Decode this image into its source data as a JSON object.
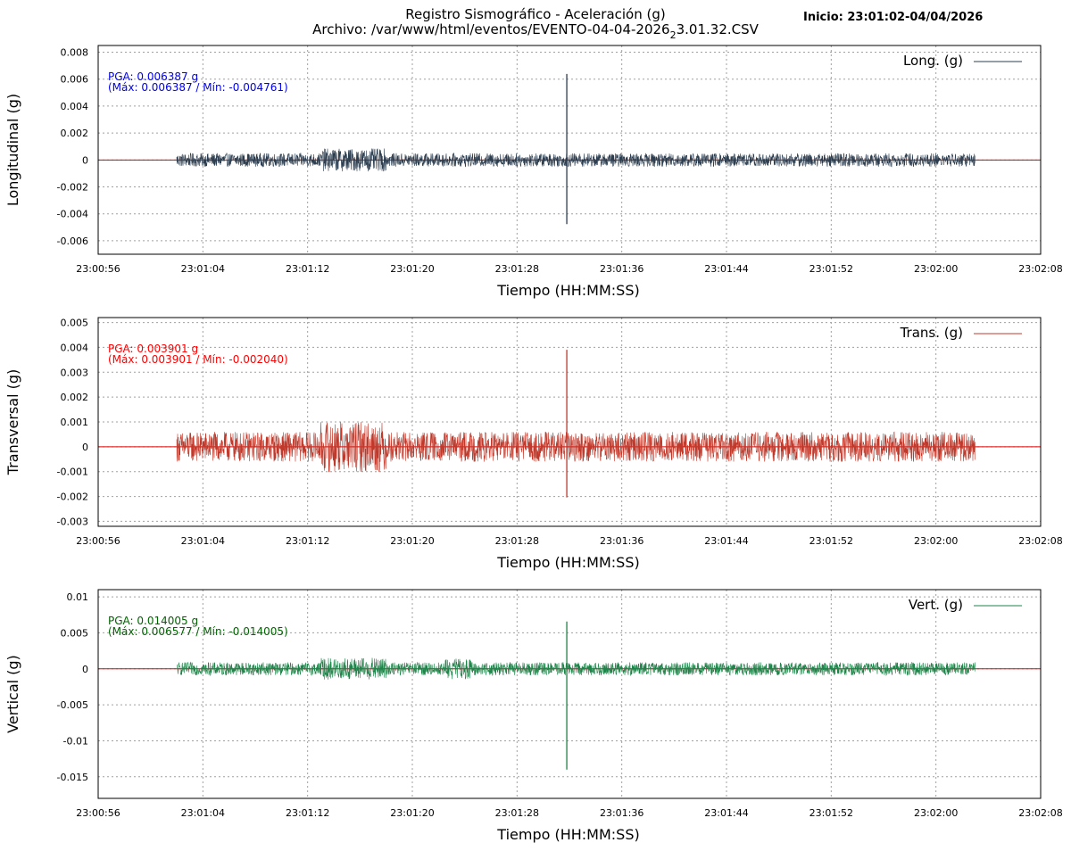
{
  "header": {
    "title_line1": "Registro Sismográfico - Aceleración (g)",
    "title_line2_main": "Archivo: /var/www/html/eventos/EVENTO-04-04-2026",
    "title_line2_sub": "2",
    "title_line2_tail": "3.01.32.CSV",
    "inicio": "Inicio: 23:01:02-04/04/2026"
  },
  "colors": {
    "baseline": "#dd0000",
    "long_trace": "#2c3e50",
    "trans_trace": "#c0392b",
    "vert_trace": "#1e8449",
    "long_annot": "#0000ee",
    "trans_annot": "#ff0000",
    "vert_annot": "#006400"
  },
  "chart_data": [
    {
      "type": "line",
      "id": "long",
      "ylabel": "Longitudinal (g)",
      "xlabel": "Tiempo (HH:MM:SS)",
      "legend": "Long. (g)",
      "legend_position": "top-right",
      "grid": true,
      "x_ticks": [
        "23:00:56",
        "23:01:04",
        "23:01:12",
        "23:01:20",
        "23:01:28",
        "23:01:36",
        "23:01:44",
        "23:01:52",
        "23:02:00",
        "23:02:08"
      ],
      "y_ticks": [
        "0.008",
        "0.006",
        "0.004",
        "0.002",
        "0",
        "-0.002",
        "-0.004",
        "-0.006"
      ],
      "ylim": [
        -0.007,
        0.0085
      ],
      "xlim_seconds_from_start": [
        0,
        72
      ],
      "signal_span_seconds": [
        6,
        67
      ],
      "noise_amplitude": 0.0005,
      "pga_label": "PGA: 0.006387 g",
      "minmax_label": "(Máx: 0.006387 / Mín: -0.004761)",
      "max": 0.006387,
      "min": -0.004761,
      "spike_time_seconds": 35.8
    },
    {
      "type": "line",
      "id": "trans",
      "ylabel": "Transversal (g)",
      "xlabel": "Tiempo (HH:MM:SS)",
      "legend": "Trans. (g)",
      "legend_position": "top-right",
      "grid": true,
      "x_ticks": [
        "23:00:56",
        "23:01:04",
        "23:01:12",
        "23:01:20",
        "23:01:28",
        "23:01:36",
        "23:01:44",
        "23:01:52",
        "23:02:00",
        "23:02:08"
      ],
      "y_ticks": [
        "0.005",
        "0.004",
        "0.003",
        "0.002",
        "0.001",
        "0",
        "-0.001",
        "-0.002",
        "-0.003"
      ],
      "ylim": [
        -0.0032,
        0.0052
      ],
      "xlim_seconds_from_start": [
        0,
        72
      ],
      "signal_span_seconds": [
        6,
        67
      ],
      "noise_amplitude": 0.0006,
      "pga_label": "PGA: 0.003901 g",
      "minmax_label": "(Máx: 0.003901 / Mín: -0.002040)",
      "max": 0.003901,
      "min": -0.00204,
      "spike_time_seconds": 35.8
    },
    {
      "type": "line",
      "id": "vert",
      "ylabel": "Vertical (g)",
      "xlabel": "Tiempo (HH:MM:SS)",
      "legend": "Vert. (g)",
      "legend_position": "top-right",
      "grid": true,
      "x_ticks": [
        "23:00:56",
        "23:01:04",
        "23:01:12",
        "23:01:20",
        "23:01:28",
        "23:01:36",
        "23:01:44",
        "23:01:52",
        "23:02:00",
        "23:02:08"
      ],
      "y_ticks": [
        "0.01",
        "0.005",
        "0",
        "-0.005",
        "-0.01",
        "-0.015"
      ],
      "ylim": [
        -0.018,
        0.011
      ],
      "xlim_seconds_from_start": [
        0,
        72
      ],
      "signal_span_seconds": [
        6,
        67
      ],
      "noise_amplitude": 0.0009,
      "pga_label": "PGA: 0.014005 g",
      "minmax_label": "(Máx: 0.006577 / Mín: -0.014005)",
      "max": 0.006577,
      "min": -0.014005,
      "spike_time_seconds": 35.8
    }
  ]
}
